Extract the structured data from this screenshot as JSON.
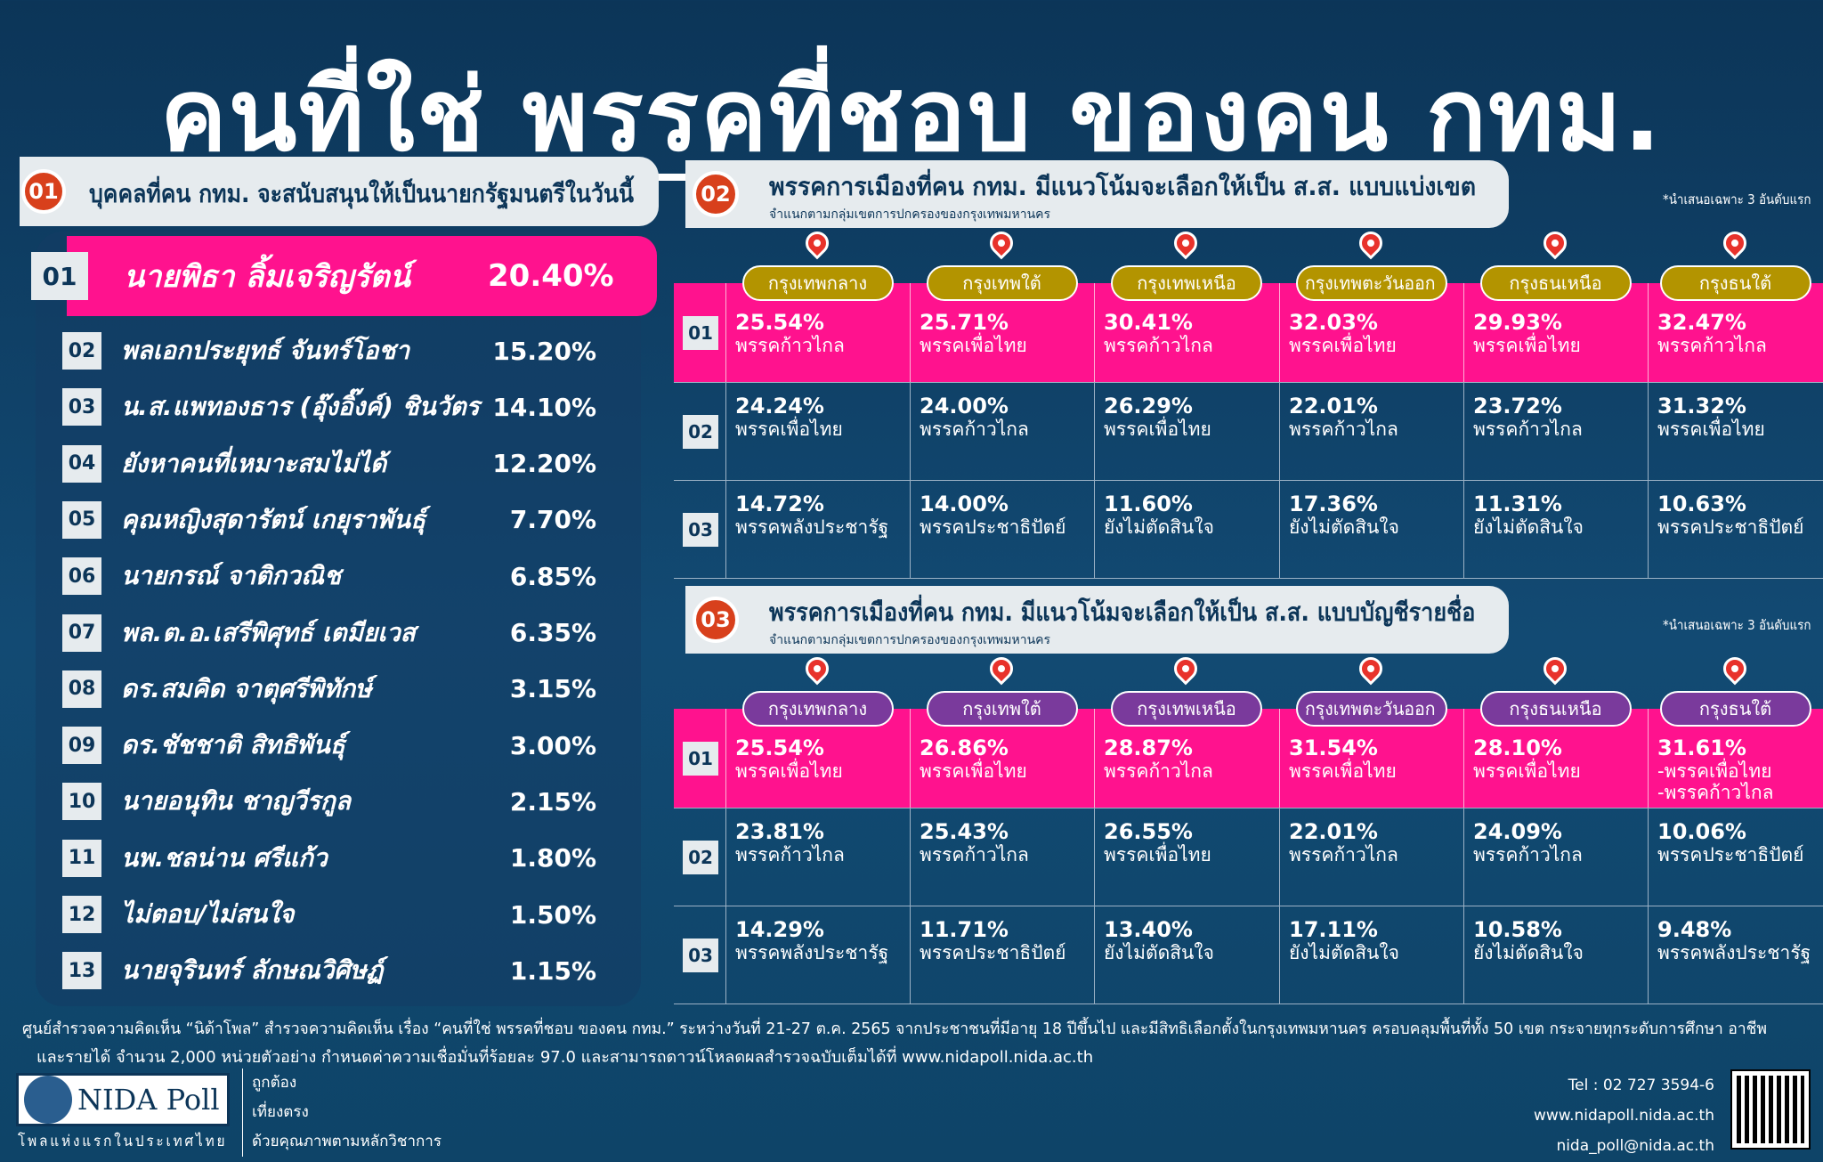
{
  "title": {
    "part1": "คนที่ใช่ พรรคที่ชอบ",
    "part2": "ของคน กทม."
  },
  "section1": {
    "badge": "01",
    "title": "บุคคลที่คน กทม. จะสนับสนุนให้เป็นนายกรัฐมนตรีในวันนี้",
    "items": [
      {
        "rank": "01",
        "name": "นายพิธา ลิ้มเจริญรัตน์",
        "pct": "20.40%"
      },
      {
        "rank": "02",
        "name": "พลเอกประยุทธ์ จันทร์โอชา",
        "pct": "15.20%"
      },
      {
        "rank": "03",
        "name": "น.ส.แพทองธาร (อุ๊งอิ๊งค์) ชินวัตร",
        "pct": "14.10%"
      },
      {
        "rank": "04",
        "name": "ยังหาคนที่เหมาะสมไม่ได้",
        "pct": "12.20%"
      },
      {
        "rank": "05",
        "name": "คุณหญิงสุดารัตน์ เกยุราพันธุ์",
        "pct": "7.70%"
      },
      {
        "rank": "06",
        "name": "นายกรณ์ จาติกวณิช",
        "pct": "6.85%"
      },
      {
        "rank": "07",
        "name": "พล.ต.อ.เสรีพิศุทธ์ เตมียเวส",
        "pct": "6.35%"
      },
      {
        "rank": "08",
        "name": "ดร.สมคิด จาตุศรีพิทักษ์",
        "pct": "3.15%"
      },
      {
        "rank": "09",
        "name": "ดร.ชัชชาติ สิทธิพันธุ์",
        "pct": "3.00%"
      },
      {
        "rank": "10",
        "name": "นายอนุทิน ชาญวีรกูล",
        "pct": "2.15%"
      },
      {
        "rank": "11",
        "name": "นพ.ชลน่าน ศรีแก้ว",
        "pct": "1.80%"
      },
      {
        "rank": "12",
        "name": "ไม่ตอบ/ไม่สนใจ",
        "pct": "1.50%"
      },
      {
        "rank": "13",
        "name": "นายจุรินทร์ ลักษณวิศิษฏ์",
        "pct": "1.15%"
      }
    ]
  },
  "section2": {
    "badge": "02",
    "title": "พรรคการเมืองที่คน กทม. มีแนวโน้มจะเลือกให้เป็น ส.ส. แบบแบ่งเขต",
    "subtitle": "จำแนกตามกลุ่มเขตการปกครองของกรุงเทพมหานคร",
    "note": "*นำเสนอเฉพาะ 3 อันดับแรก",
    "label_color": "#b39400",
    "districts": [
      "กรุงเทพกลาง",
      "กรุงเทพใต้",
      "กรุงเทพเหนือ",
      "กรุงเทพตะวันออก",
      "กรุงธนเหนือ",
      "กรุงธนใต้"
    ],
    "rows": [
      {
        "rank": "01",
        "cells": [
          {
            "v": "25.54%",
            "p": "พรรคก้าวไกล"
          },
          {
            "v": "25.71%",
            "p": "พรรคเพื่อไทย"
          },
          {
            "v": "30.41%",
            "p": "พรรคก้าวไกล"
          },
          {
            "v": "32.03%",
            "p": "พรรคเพื่อไทย"
          },
          {
            "v": "29.93%",
            "p": "พรรคเพื่อไทย"
          },
          {
            "v": "32.47%",
            "p": "พรรคก้าวไกล"
          }
        ]
      },
      {
        "rank": "02",
        "cells": [
          {
            "v": "24.24%",
            "p": "พรรคเพื่อไทย"
          },
          {
            "v": "24.00%",
            "p": "พรรคก้าวไกล"
          },
          {
            "v": "26.29%",
            "p": "พรรคเพื่อไทย"
          },
          {
            "v": "22.01%",
            "p": "พรรคก้าวไกล"
          },
          {
            "v": "23.72%",
            "p": "พรรคก้าวไกล"
          },
          {
            "v": "31.32%",
            "p": "พรรคเพื่อไทย"
          }
        ]
      },
      {
        "rank": "03",
        "cells": [
          {
            "v": "14.72%",
            "p": "พรรคพลังประชารัฐ"
          },
          {
            "v": "14.00%",
            "p": "พรรคประชาธิปัตย์"
          },
          {
            "v": "11.60%",
            "p": "ยังไม่ตัดสินใจ"
          },
          {
            "v": "17.36%",
            "p": "ยังไม่ตัดสินใจ"
          },
          {
            "v": "11.31%",
            "p": "ยังไม่ตัดสินใจ"
          },
          {
            "v": "10.63%",
            "p": "พรรคประชาธิปัตย์"
          }
        ]
      }
    ]
  },
  "section3": {
    "badge": "03",
    "title": "พรรคการเมืองที่คน กทม. มีแนวโน้มจะเลือกให้เป็น ส.ส. แบบบัญชีรายชื่อ",
    "subtitle": "จำแนกตามกลุ่มเขตการปกครองของกรุงเทพมหานคร",
    "note": "*นำเสนอเฉพาะ 3 อันดับแรก",
    "label_color": "#7a3a9c",
    "districts": [
      "กรุงเทพกลาง",
      "กรุงเทพใต้",
      "กรุงเทพเหนือ",
      "กรุงเทพตะวันออก",
      "กรุงธนเหนือ",
      "กรุงธนใต้"
    ],
    "rows": [
      {
        "rank": "01",
        "cells": [
          {
            "v": "25.54%",
            "p": "พรรคเพื่อไทย"
          },
          {
            "v": "26.86%",
            "p": "พรรคเพื่อไทย"
          },
          {
            "v": "28.87%",
            "p": "พรรคก้าวไกล"
          },
          {
            "v": "31.54%",
            "p": "พรรคเพื่อไทย"
          },
          {
            "v": "28.10%",
            "p": "พรรคเพื่อไทย"
          },
          {
            "v": "31.61%",
            "p": "-พรรคเพื่อไทย\n-พรรคก้าวไกล"
          }
        ]
      },
      {
        "rank": "02",
        "cells": [
          {
            "v": "23.81%",
            "p": "พรรคก้าวไกล"
          },
          {
            "v": "25.43%",
            "p": "พรรคก้าวไกล"
          },
          {
            "v": "26.55%",
            "p": "พรรคเพื่อไทย"
          },
          {
            "v": "22.01%",
            "p": "พรรคก้าวไกล"
          },
          {
            "v": "24.09%",
            "p": "พรรคก้าวไกล"
          },
          {
            "v": "10.06%",
            "p": "พรรคประชาธิปัตย์"
          }
        ]
      },
      {
        "rank": "03",
        "cells": [
          {
            "v": "14.29%",
            "p": "พรรคพลังประชารัฐ"
          },
          {
            "v": "11.71%",
            "p": "พรรคประชาธิปัตย์"
          },
          {
            "v": "13.40%",
            "p": "ยังไม่ตัดสินใจ"
          },
          {
            "v": "17.11%",
            "p": "ยังไม่ตัดสินใจ"
          },
          {
            "v": "10.58%",
            "p": "ยังไม่ตัดสินใจ"
          },
          {
            "v": "9.48%",
            "p": "พรรคพลังประชารัฐ"
          }
        ]
      }
    ]
  },
  "footer": {
    "line1": "ศูนย์สำรวจความคิดเห็น “นิด้าโพล” สำรวจความคิดเห็น เรื่อง “คนที่ใช่ พรรคที่ชอบ ของคน กทม.” ระหว่างวันที่ 21-27 ต.ค. 2565 จากประชาชนที่มีอายุ 18 ปีขึ้นไป และมีสิทธิเลือกตั้งในกรุงเทพมหานคร ครอบคลุมพื้นที่ทั้ง 50 เขต กระจายทุกระดับการศึกษา อาชีพ",
    "line2": "และรายได้ จำนวน 2,000 หน่วยตัวอย่าง กำหนดค่าความเชื่อมั่นที่ร้อยละ 97.0 และสามารถดาวน์โหลดผลสำรวจฉบับเต็มได้ที่ www.nidapoll.nida.ac.th",
    "logo_text": "NIDA Poll",
    "logo_tagline": "โพลแห่งแรกในประเทศไทย",
    "slogans": [
      "ถูกต้อง",
      "เที่ยงตรง",
      "ด้วยคุณภาพตามหลักวิชาการ"
    ],
    "tel": "Tel : 02 727 3594-6",
    "web": "www.nidapoll.nida.ac.th",
    "email": "nida_poll@nida.ac.th"
  },
  "colors": {
    "background": "#0c3558",
    "pink": "#ff128e",
    "badge": "#d8401c"
  }
}
